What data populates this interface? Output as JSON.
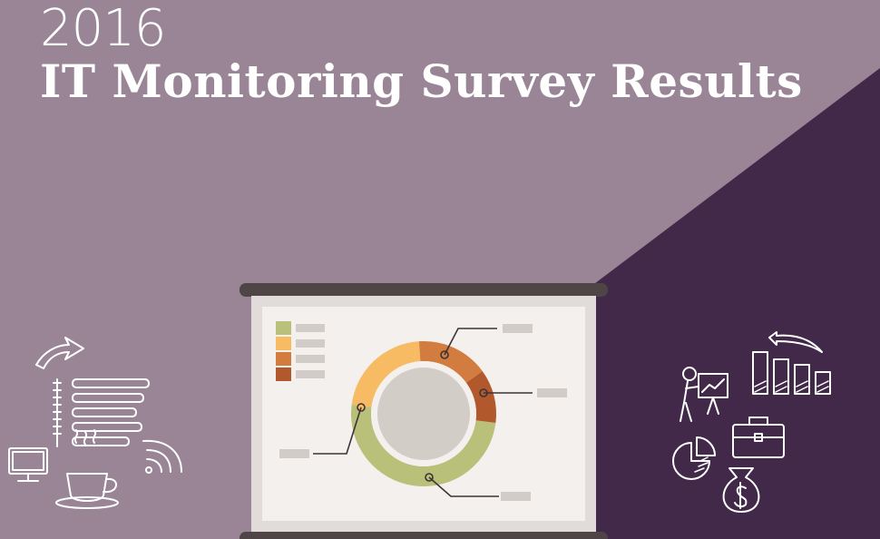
{
  "header": {
    "year": "2016",
    "title": "IT Monitoring Survey Results"
  },
  "colors": {
    "background": "#9a8597",
    "diagonal_panel": "#42294a",
    "screen": "#f3f0ee",
    "screen_frame": "#e1dcd9",
    "roller_bar": "#4f4446",
    "green": "#b8c07a",
    "yellow": "#f7bc63",
    "orange": "#d27d3f",
    "rust": "#b2582d",
    "center_disc": "#d3cdc8",
    "placeholder_bar": "#d1ccc8"
  },
  "projector_chart": {
    "type": "donut",
    "legend_swatches": [
      "green",
      "yellow",
      "orange",
      "rust"
    ],
    "segments": [
      {
        "color": "green",
        "share": 0.5
      },
      {
        "color": "yellow",
        "share": 0.22
      },
      {
        "color": "orange",
        "share": 0.16
      },
      {
        "color": "rust",
        "share": 0.12
      }
    ]
  },
  "doodles": {
    "left": [
      "curved-arrow-icon",
      "bar-list-icon",
      "monitor-icon",
      "coffee-cup-icon",
      "wifi-icon"
    ],
    "right": [
      "presenter-icon",
      "bar-chart-icon",
      "swap-arrow-icon",
      "briefcase-icon",
      "pie-chart-icon",
      "money-bag-icon"
    ]
  }
}
